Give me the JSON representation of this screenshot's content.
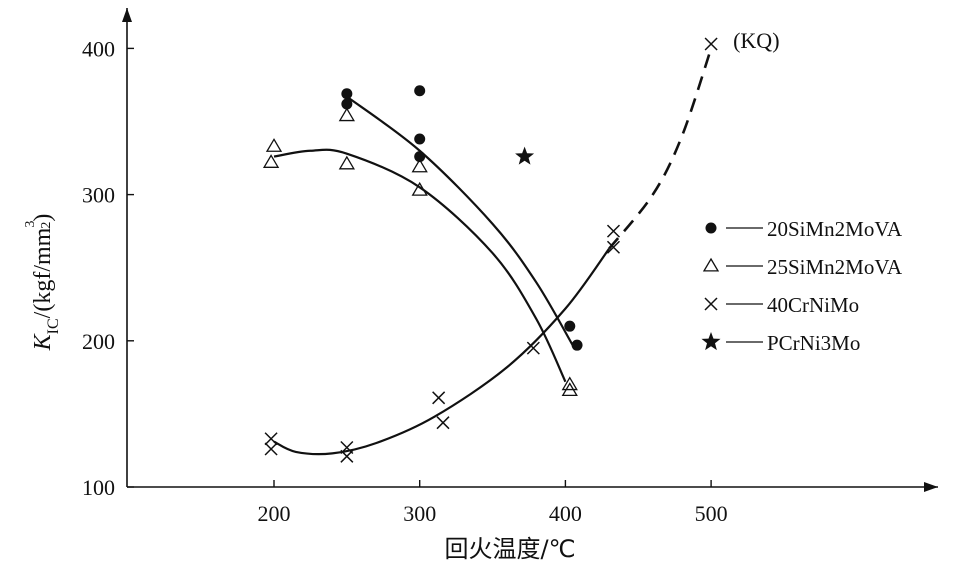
{
  "chart_data": {
    "type": "scatter",
    "xlabel": "回火温度/℃",
    "ylabel": {
      "symbol": "K",
      "subscript": "IC",
      "unit_prefix": "/(kgf/mm",
      "unit_exponent_num": "3",
      "unit_exponent_den": "2",
      "unit_suffix": ")"
    },
    "xlim": [
      110,
      555
    ],
    "ylim": [
      100,
      425
    ],
    "x_ticks": [
      200,
      300,
      400,
      500
    ],
    "y_ticks": [
      100,
      200,
      300,
      400
    ],
    "grid": false,
    "legend_position": "right",
    "series": [
      {
        "name": "20SiMn2MoVA",
        "marker": "dot",
        "points": [
          [
            250,
            369
          ],
          [
            250,
            362
          ],
          [
            300,
            371
          ],
          [
            300,
            338
          ],
          [
            300,
            326
          ],
          [
            403,
            210
          ],
          [
            408,
            197
          ]
        ],
        "curve": [
          [
            250,
            367
          ],
          [
            300,
            330
          ],
          [
            350,
            280
          ],
          [
            380,
            240
          ],
          [
            405,
            197
          ]
        ],
        "color": "#111111"
      },
      {
        "name": "25SiMn2MoVA",
        "marker": "triangle",
        "points": [
          [
            200,
            333
          ],
          [
            198,
            322
          ],
          [
            250,
            354
          ],
          [
            250,
            321
          ],
          [
            300,
            319
          ],
          [
            300,
            303
          ],
          [
            403,
            170
          ],
          [
            403,
            166
          ]
        ],
        "curve": [
          [
            200,
            326
          ],
          [
            225,
            330
          ],
          [
            250,
            328
          ],
          [
            300,
            305
          ],
          [
            350,
            260
          ],
          [
            380,
            215
          ],
          [
            400,
            172
          ]
        ],
        "color": "#111111"
      },
      {
        "name": "40CrNiMo",
        "marker": "cross",
        "points": [
          [
            198,
            133
          ],
          [
            198,
            126
          ],
          [
            250,
            127
          ],
          [
            250,
            121
          ],
          [
            313,
            161
          ],
          [
            316,
            144
          ],
          [
            378,
            195
          ],
          [
            433,
            275
          ],
          [
            433,
            264
          ],
          [
            500,
            403
          ]
        ],
        "curve": [
          [
            200,
            131
          ],
          [
            215,
            124
          ],
          [
            240,
            123
          ],
          [
            270,
            130
          ],
          [
            310,
            148
          ],
          [
            360,
            182
          ],
          [
            400,
            222
          ],
          [
            430,
            263
          ]
        ],
        "curve_dashed": [
          [
            430,
            263
          ],
          [
            460,
            300
          ],
          [
            480,
            340
          ],
          [
            500,
            400
          ]
        ],
        "color": "#111111"
      },
      {
        "name": "PCrNi3Mo",
        "marker": "star",
        "points": [
          [
            372,
            326
          ]
        ],
        "color": "#111111"
      }
    ],
    "annotations": [
      {
        "text": "(KQ)",
        "x": 500,
        "y": 403
      }
    ]
  }
}
